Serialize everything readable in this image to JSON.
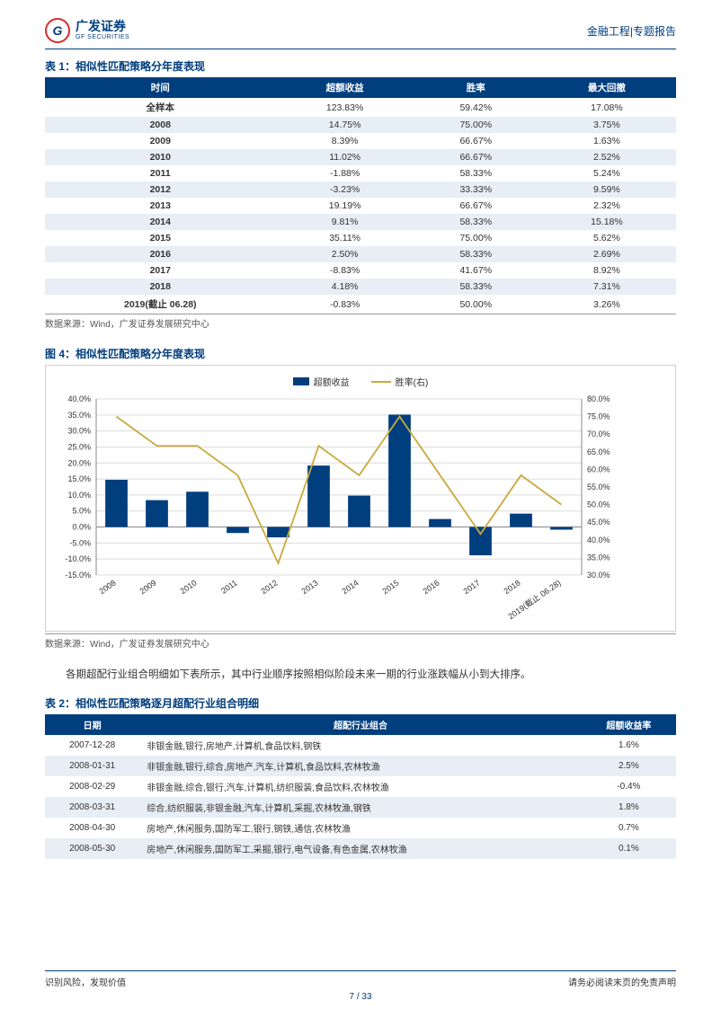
{
  "header": {
    "logo_cn": "广发证券",
    "logo_en": "GF SECURITIES",
    "logo_letter": "G",
    "right": "金融工程|专题报告"
  },
  "table1": {
    "caption": "表 1：相似性匹配策略分年度表现",
    "columns": [
      "时间",
      "超额收益",
      "胜率",
      "最大回撤"
    ],
    "rows": [
      [
        "全样本",
        "123.83%",
        "59.42%",
        "17.08%"
      ],
      [
        "2008",
        "14.75%",
        "75.00%",
        "3.75%"
      ],
      [
        "2009",
        "8.39%",
        "66.67%",
        "1.63%"
      ],
      [
        "2010",
        "11.02%",
        "66.67%",
        "2.52%"
      ],
      [
        "2011",
        "-1.88%",
        "58.33%",
        "5.24%"
      ],
      [
        "2012",
        "-3.23%",
        "33.33%",
        "9.59%"
      ],
      [
        "2013",
        "19.19%",
        "66.67%",
        "2.32%"
      ],
      [
        "2014",
        "9.81%",
        "58.33%",
        "15.18%"
      ],
      [
        "2015",
        "35.11%",
        "75.00%",
        "5.62%"
      ],
      [
        "2016",
        "2.50%",
        "58.33%",
        "2.69%"
      ],
      [
        "2017",
        "-8.83%",
        "41.67%",
        "8.92%"
      ],
      [
        "2018",
        "4.18%",
        "58.33%",
        "7.31%"
      ],
      [
        "2019(截止 06.28)",
        "-0.83%",
        "50.00%",
        "3.26%"
      ]
    ],
    "source": "数据来源：Wind，广发证券发展研究中心"
  },
  "chart": {
    "caption": "图 4：相似性匹配策略分年度表现",
    "type": "bar+line",
    "legend": {
      "bar": "超额收益",
      "line": "胜率(右)"
    },
    "categories": [
      "2008",
      "2009",
      "2010",
      "2011",
      "2012",
      "2013",
      "2014",
      "2015",
      "2016",
      "2017",
      "2018",
      "2019(截止 06.28)"
    ],
    "bar_values": [
      14.75,
      8.39,
      11.02,
      -1.88,
      -3.23,
      19.19,
      9.81,
      35.11,
      2.5,
      -8.83,
      4.18,
      -0.83
    ],
    "line_values": [
      75.0,
      66.67,
      66.67,
      58.33,
      33.33,
      66.67,
      58.33,
      75.0,
      58.33,
      41.67,
      58.33,
      50.0
    ],
    "bar_color": "#003e7e",
    "line_color": "#c9aa3d",
    "grid_color": "#dcdcdc",
    "background_color": "#ffffff",
    "y_left": {
      "min": -15,
      "max": 40,
      "step": 5,
      "suffix": "%"
    },
    "y_right": {
      "min": 30,
      "max": 80,
      "step": 5,
      "suffix": "%"
    },
    "bar_width": 0.55,
    "font_size": 9,
    "source": "数据来源：Wind，广发证券发展研究中心"
  },
  "body_text": "各期超配行业组合明细如下表所示，其中行业顺序按照相似阶段未来一期的行业涨跌幅从小到大排序。",
  "table2": {
    "caption": "表 2：相似性匹配策略逐月超配行业组合明细",
    "columns": [
      "日期",
      "超配行业组合",
      "超额收益率"
    ],
    "rows": [
      [
        "2007-12-28",
        "非银金融,银行,房地产,计算机,食品饮料,钢铁",
        "1.6%"
      ],
      [
        "2008-01-31",
        "非银金融,银行,综合,房地产,汽车,计算机,食品饮料,农林牧渔",
        "2.5%"
      ],
      [
        "2008-02-29",
        "非银金融,综合,银行,汽车,计算机,纺织服装,食品饮料,农林牧渔",
        "-0.4%"
      ],
      [
        "2008-03-31",
        "综合,纺织服装,非银金融,汽车,计算机,采掘,农林牧渔,钢铁",
        "1.8%"
      ],
      [
        "2008-04-30",
        "房地产,休闲服务,国防军工,银行,钢铁,通信,农林牧渔",
        "0.7%"
      ],
      [
        "2008-05-30",
        "房地产,休闲服务,国防军工,采掘,银行,电气设备,有色金属,农林牧渔",
        "0.1%"
      ]
    ]
  },
  "footer": {
    "left": "识别风险，发现价值",
    "right": "请务必阅读末页的免责声明",
    "page": "7 / 33"
  }
}
